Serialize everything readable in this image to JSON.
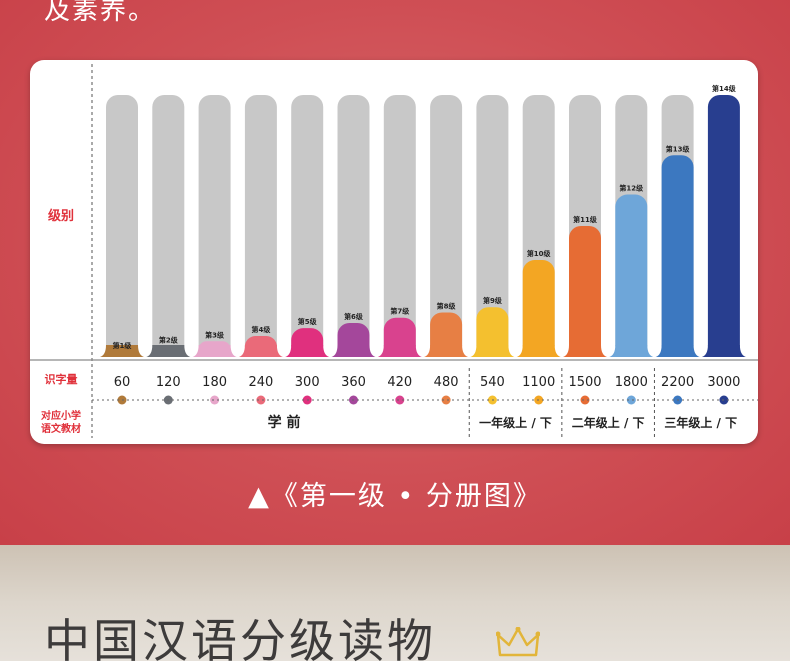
{
  "page": {
    "intro_text": "及素养。",
    "caption": "▲《第一级 • 分册图》",
    "series_title": "中国汉语分级读物"
  },
  "colors": {
    "background": "#cf4f55",
    "bar_track": "#c8c8c8",
    "row_label": "#e0303a",
    "level_colors": [
      "#b07a3a",
      "#6a6e74",
      "#e7a6ca",
      "#ea6a79",
      "#e0307e",
      "#a4479b",
      "#d9428e",
      "#e77f44",
      "#f4c02f",
      "#f3a623",
      "#e66c34",
      "#6ea6d9",
      "#3c78c0",
      "#283e8f"
    ]
  },
  "chart_data": {
    "type": "bar",
    "row_labels": {
      "level": "级别",
      "chars": "识字量",
      "textbook": "对应小学语文教材"
    },
    "categories": [
      "第1级",
      "第2级",
      "第3级",
      "第4级",
      "第5级",
      "第6级",
      "第7级",
      "第8级",
      "第9级",
      "第10级",
      "第11级",
      "第12级",
      "第13级",
      "第14级"
    ],
    "values": [
      60,
      120,
      180,
      240,
      300,
      360,
      420,
      480,
      540,
      1100,
      1500,
      1800,
      2200,
      3000
    ],
    "value_labels": [
      "60",
      "120",
      "180",
      "240",
      "300",
      "360",
      "420",
      "480",
      "540",
      "1100",
      "1500",
      "1800",
      "2200",
      "3000"
    ],
    "fill_levels": [
      0.02,
      0.04,
      0.06,
      0.08,
      0.11,
      0.13,
      0.15,
      0.17,
      0.19,
      0.37,
      0.5,
      0.62,
      0.77,
      1.0
    ],
    "grades": [
      {
        "label": "学 前",
        "levels": [
          1,
          2,
          3,
          4,
          5,
          6,
          7,
          8
        ]
      },
      {
        "label": "一年级上 / 下",
        "levels": [
          9,
          10
        ]
      },
      {
        "label": "二年级上 / 下",
        "levels": [
          11,
          12
        ]
      },
      {
        "label": "三年级上 / 下",
        "levels": [
          13,
          14
        ]
      }
    ]
  }
}
